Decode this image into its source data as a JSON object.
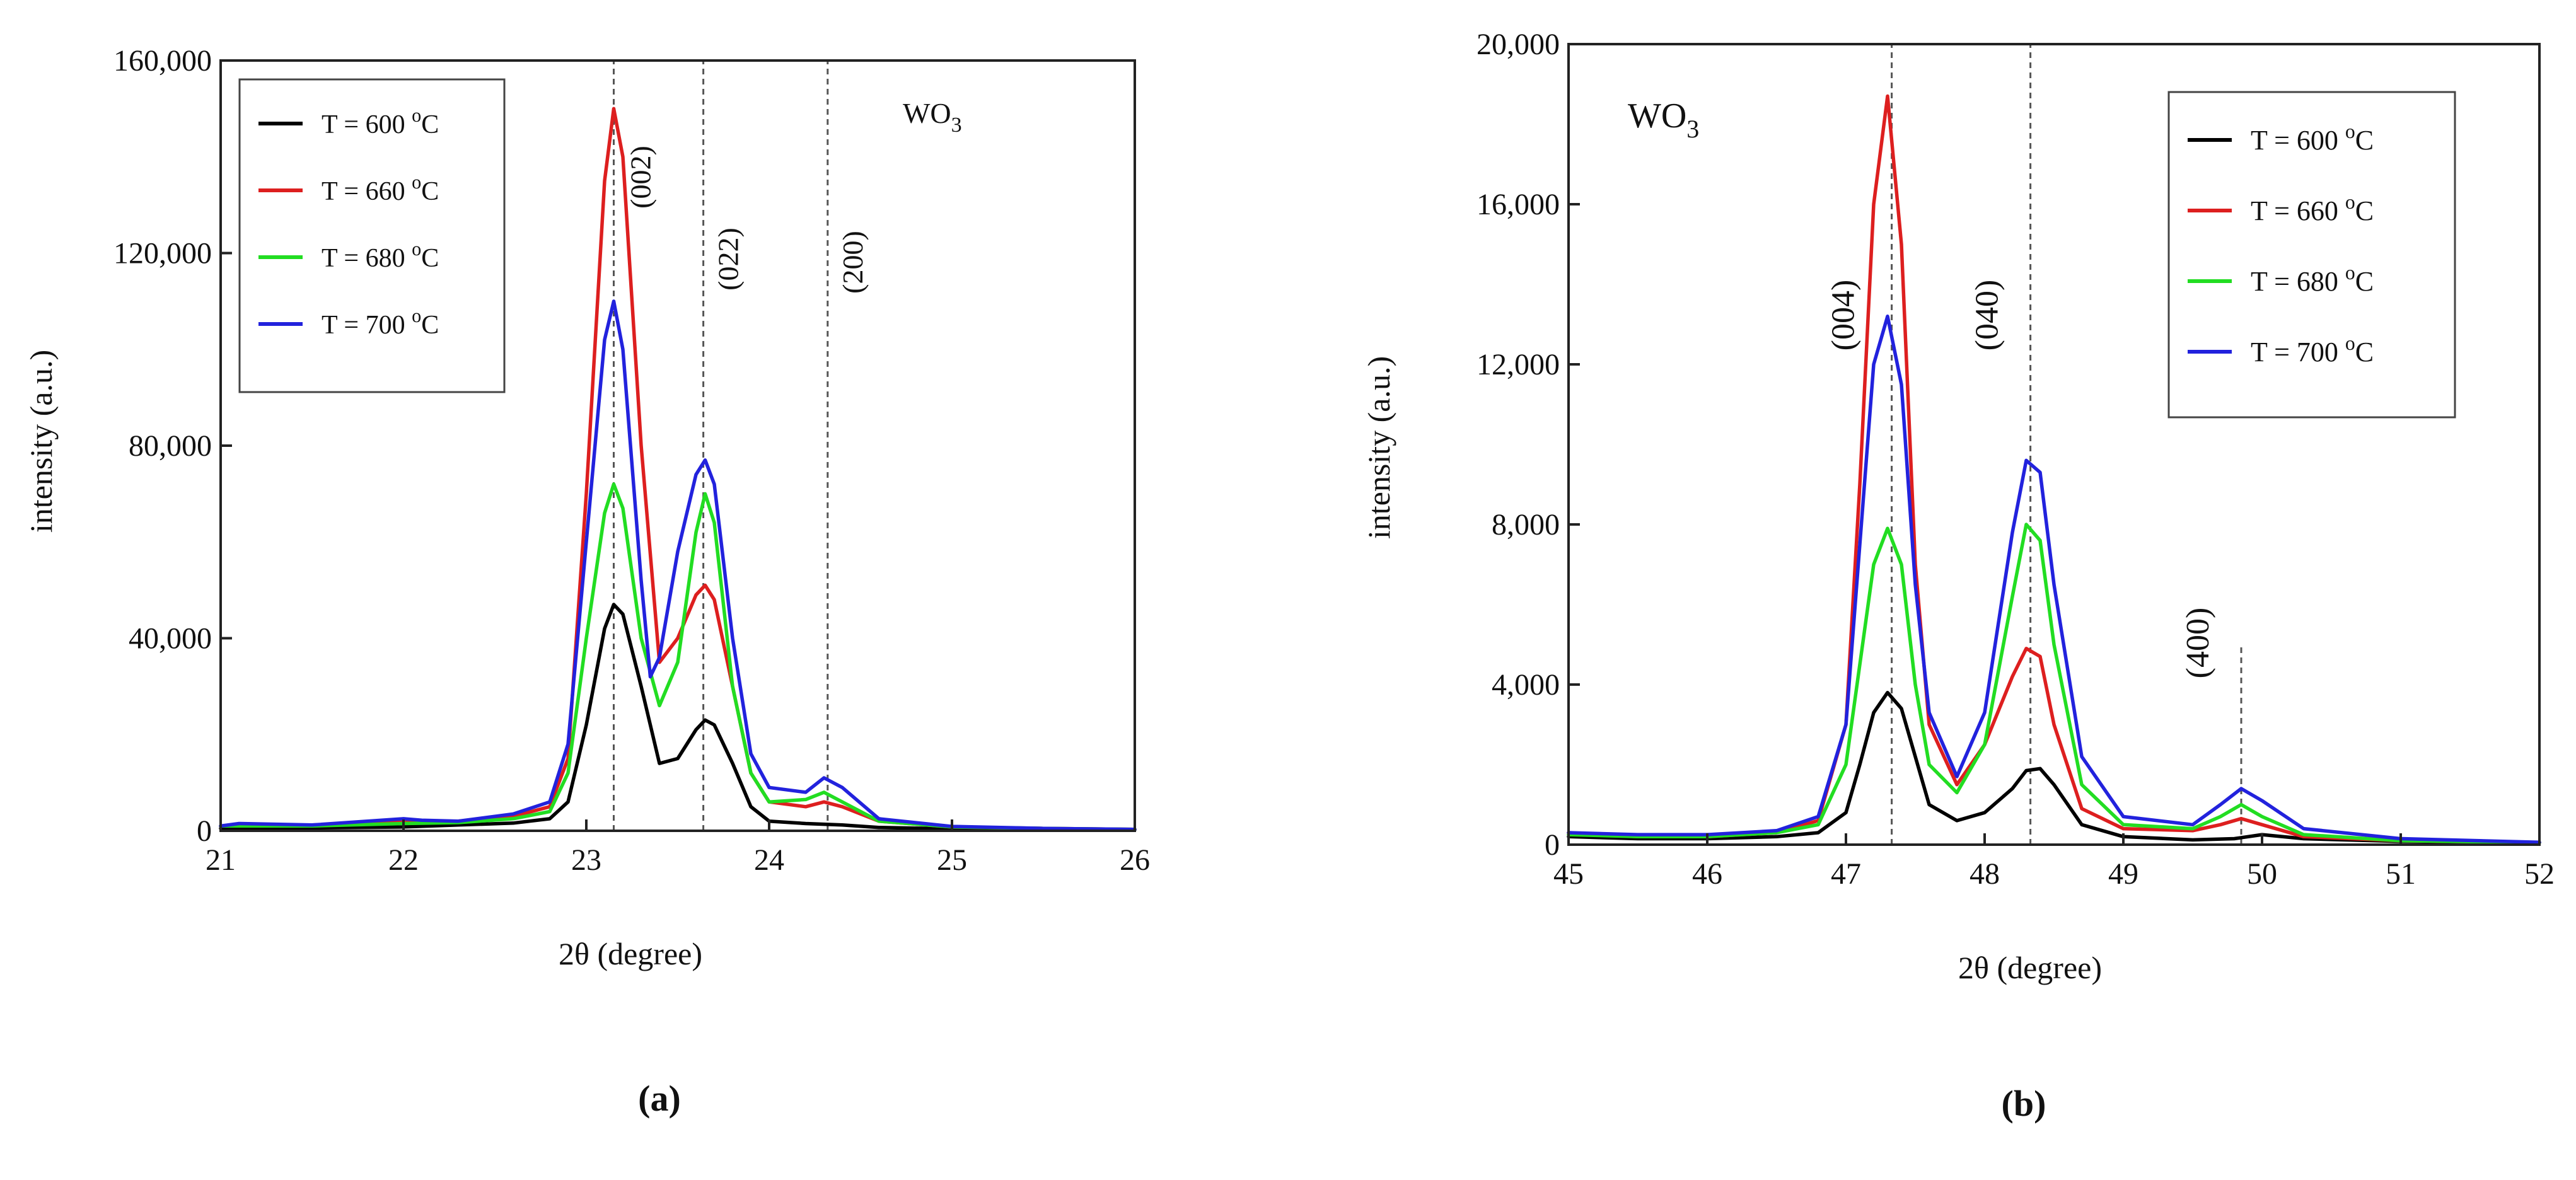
{
  "chart_data": [
    {
      "type": "line",
      "panel_label": "(a)",
      "xlabel": "2θ (degree)",
      "ylabel": "intensity (a.u.)",
      "xlim": [
        21,
        26
      ],
      "ylim": [
        0,
        160000
      ],
      "x_ticks": [
        21,
        22,
        23,
        24,
        25,
        26
      ],
      "y_ticks": [
        0,
        40000,
        80000,
        120000,
        160000
      ],
      "y_tick_labels": [
        "0",
        "40,000",
        "80,000",
        "120,000",
        "160,000"
      ],
      "annotation_text": "WO",
      "annotation_sub": "3",
      "legend_position": "top-left",
      "guides": [
        {
          "label": "(002)",
          "x": 23.15,
          "ymax": 160000
        },
        {
          "label": "(022)",
          "x": 23.64,
          "ymax": 160000
        },
        {
          "label": "(200)",
          "x": 24.32,
          "ymax": 160000
        }
      ],
      "series": [
        {
          "name": "T = 600",
          "unit_sup": "o",
          "unit": "C",
          "color": "#000000",
          "x": [
            21,
            21.5,
            22,
            22.3,
            22.6,
            22.8,
            22.9,
            23.0,
            23.1,
            23.15,
            23.2,
            23.3,
            23.4,
            23.5,
            23.6,
            23.65,
            23.7,
            23.8,
            23.9,
            24.0,
            24.2,
            24.4,
            24.6,
            25,
            25.5,
            26
          ],
          "values": [
            500,
            600,
            800,
            1200,
            1600,
            2500,
            6000,
            22000,
            42000,
            47000,
            45000,
            30000,
            14000,
            15000,
            21000,
            23000,
            22000,
            14000,
            5000,
            2000,
            1500,
            1200,
            700,
            400,
            300,
            200
          ]
        },
        {
          "name": "T = 660",
          "unit_sup": "o",
          "unit": "C",
          "color": "#dd1f1f",
          "x": [
            21,
            21.5,
            22,
            22.3,
            22.6,
            22.8,
            22.9,
            23.0,
            23.1,
            23.15,
            23.2,
            23.3,
            23.4,
            23.5,
            23.6,
            23.65,
            23.7,
            23.8,
            23.9,
            24.0,
            24.2,
            24.3,
            24.4,
            24.6,
            25,
            25.5,
            26
          ],
          "values": [
            1000,
            1200,
            1800,
            2000,
            3000,
            5000,
            15000,
            70000,
            135000,
            150000,
            140000,
            80000,
            35000,
            40000,
            49000,
            51000,
            48000,
            30000,
            12000,
            6000,
            5000,
            6000,
            5000,
            2000,
            800,
            500,
            300
          ]
        },
        {
          "name": "T = 680",
          "unit_sup": "o",
          "unit": "C",
          "color": "#22dd22",
          "x": [
            21,
            21.5,
            22,
            22.3,
            22.6,
            22.8,
            22.9,
            23.0,
            23.1,
            23.15,
            23.2,
            23.3,
            23.4,
            23.5,
            23.6,
            23.65,
            23.7,
            23.8,
            23.9,
            24.0,
            24.2,
            24.3,
            24.4,
            24.6,
            25,
            25.5,
            26
          ],
          "values": [
            1000,
            1000,
            1500,
            1700,
            2500,
            4000,
            12000,
            40000,
            66000,
            72000,
            67000,
            40000,
            26000,
            35000,
            62000,
            70000,
            64000,
            30000,
            12000,
            6000,
            6500,
            8000,
            6000,
            2000,
            800,
            500,
            300
          ]
        },
        {
          "name": "T = 700",
          "unit_sup": "o",
          "unit": "C",
          "color": "#2222dd",
          "x": [
            21,
            21.1,
            21.5,
            22,
            22.1,
            22.3,
            22.6,
            22.8,
            22.9,
            23.0,
            23.1,
            23.15,
            23.2,
            23.3,
            23.35,
            23.4,
            23.5,
            23.6,
            23.65,
            23.7,
            23.8,
            23.9,
            24.0,
            24.2,
            24.3,
            24.4,
            24.6,
            25,
            25.5,
            26
          ],
          "values": [
            1000,
            1500,
            1200,
            2500,
            2200,
            2000,
            3500,
            6000,
            18000,
            60000,
            102000,
            110000,
            100000,
            52000,
            32000,
            36000,
            58000,
            74000,
            77000,
            72000,
            40000,
            16000,
            9000,
            8000,
            11000,
            9000,
            2500,
            900,
            500,
            300
          ]
        }
      ]
    },
    {
      "type": "line",
      "panel_label": "(b)",
      "xlabel": "2θ (degree)",
      "ylabel": "intensity (a.u.)",
      "xlim": [
        45,
        52
      ],
      "ylim": [
        0,
        20000
      ],
      "x_ticks": [
        45,
        46,
        47,
        48,
        49,
        50,
        51,
        52
      ],
      "y_ticks": [
        0,
        4000,
        8000,
        12000,
        16000,
        20000
      ],
      "y_tick_labels": [
        "0",
        "4,000",
        "8,000",
        "12,000",
        "16,000",
        "20,000"
      ],
      "annotation_text": "WO",
      "annotation_sub": "3",
      "legend_position": "top-right",
      "guides": [
        {
          "label": "(004)",
          "x": 47.33,
          "ymax": 20000
        },
        {
          "label": "(040)",
          "x": 48.33,
          "ymax": 20000
        },
        {
          "label": "(400)",
          "x": 49.85,
          "ymax": 5000
        }
      ],
      "series": [
        {
          "name": "T = 600",
          "unit_sup": "o",
          "unit": "C",
          "color": "#000000",
          "x": [
            45,
            45.5,
            46,
            46.5,
            46.8,
            47.0,
            47.1,
            47.2,
            47.3,
            47.4,
            47.5,
            47.6,
            47.8,
            48.0,
            48.2,
            48.3,
            48.4,
            48.5,
            48.7,
            49.0,
            49.5,
            49.8,
            50.0,
            50.3,
            51,
            52
          ],
          "values": [
            200,
            150,
            150,
            200,
            300,
            800,
            2000,
            3300,
            3800,
            3400,
            2200,
            1000,
            600,
            800,
            1400,
            1850,
            1900,
            1500,
            500,
            200,
            120,
            150,
            250,
            150,
            80,
            50
          ]
        },
        {
          "name": "T = 660",
          "unit_sup": "o",
          "unit": "C",
          "color": "#dd1f1f",
          "x": [
            45,
            45.5,
            46,
            46.5,
            46.8,
            47.0,
            47.1,
            47.2,
            47.3,
            47.4,
            47.5,
            47.6,
            47.8,
            48.0,
            48.2,
            48.3,
            48.4,
            48.5,
            48.7,
            49.0,
            49.5,
            49.7,
            49.85,
            50.0,
            50.3,
            51,
            52
          ],
          "values": [
            300,
            200,
            200,
            300,
            600,
            3000,
            9000,
            16000,
            18700,
            15000,
            7000,
            3000,
            1500,
            2500,
            4200,
            4900,
            4700,
            3000,
            900,
            400,
            350,
            500,
            650,
            500,
            200,
            100,
            50
          ]
        },
        {
          "name": "T = 680",
          "unit_sup": "o",
          "unit": "C",
          "color": "#22dd22",
          "x": [
            45,
            45.5,
            46,
            46.5,
            46.8,
            47.0,
            47.1,
            47.2,
            47.3,
            47.4,
            47.5,
            47.6,
            47.8,
            48.0,
            48.2,
            48.3,
            48.4,
            48.5,
            48.7,
            49.0,
            49.5,
            49.7,
            49.85,
            50.0,
            50.3,
            51,
            52
          ],
          "values": [
            250,
            200,
            200,
            300,
            500,
            2000,
            4500,
            7000,
            7900,
            7000,
            4000,
            2000,
            1300,
            2500,
            6200,
            8000,
            7600,
            5000,
            1500,
            500,
            400,
            700,
            1000,
            700,
            250,
            100,
            50
          ]
        },
        {
          "name": "T = 700",
          "unit_sup": "o",
          "unit": "C",
          "color": "#2222dd",
          "x": [
            45,
            45.5,
            46,
            46.5,
            46.8,
            47.0,
            47.1,
            47.2,
            47.3,
            47.4,
            47.5,
            47.6,
            47.8,
            48.0,
            48.2,
            48.3,
            48.4,
            48.5,
            48.7,
            49.0,
            49.5,
            49.7,
            49.85,
            50.0,
            50.3,
            51,
            52
          ],
          "values": [
            300,
            250,
            250,
            350,
            700,
            3000,
            7500,
            12000,
            13200,
            11500,
            6500,
            3300,
            1700,
            3300,
            7800,
            9600,
            9300,
            6500,
            2200,
            700,
            500,
            1000,
            1400,
            1100,
            400,
            150,
            60
          ]
        }
      ]
    }
  ]
}
